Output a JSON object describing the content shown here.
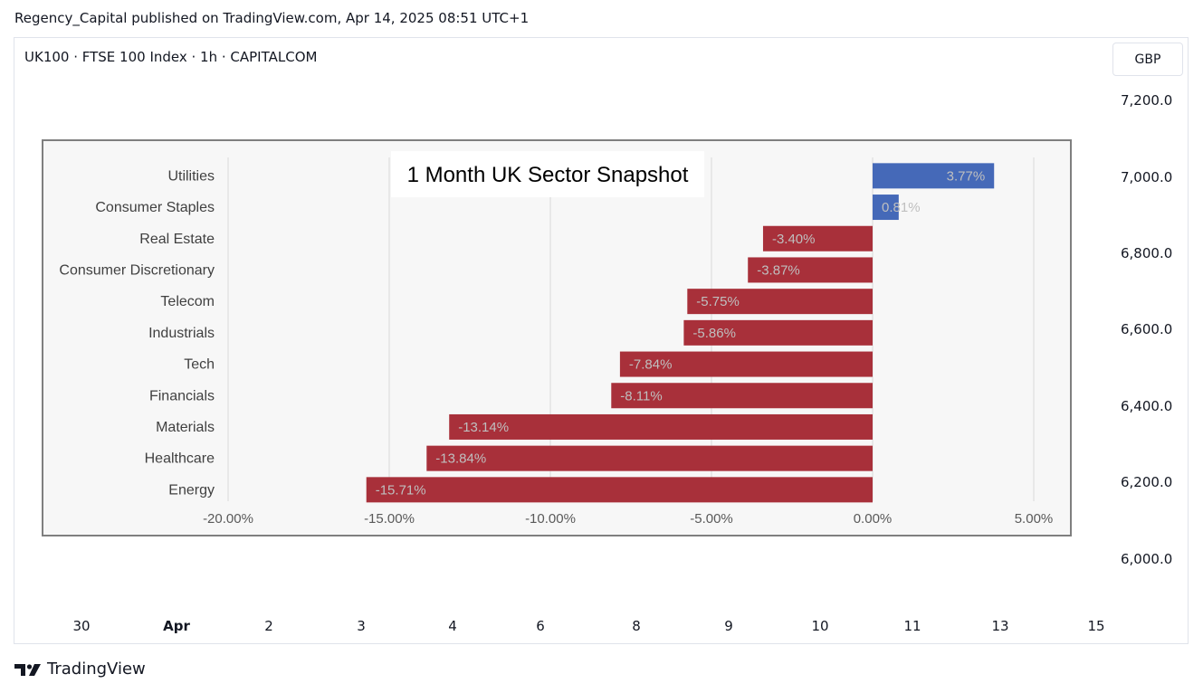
{
  "header": {
    "published": "Regency_Capital published on TradingView.com, Apr 14, 2025 08:51 UTC+1"
  },
  "symbol_line": "UK100 · FTSE 100 Index · 1h · CAPITALCOM",
  "currency_button": "GBP",
  "price_axis": [
    "7,200.0",
    "7,000.0",
    "6,800.0",
    "6,600.0",
    "6,400.0",
    "6,200.0",
    "6,000.0"
  ],
  "time_axis": [
    {
      "label": "30",
      "bold": false
    },
    {
      "label": "Apr",
      "bold": true
    },
    {
      "label": "2",
      "bold": false
    },
    {
      "label": "3",
      "bold": false
    },
    {
      "label": "4",
      "bold": false
    },
    {
      "label": "6",
      "bold": false
    },
    {
      "label": "8",
      "bold": false
    },
    {
      "label": "9",
      "bold": false
    },
    {
      "label": "10",
      "bold": false
    },
    {
      "label": "11",
      "bold": false
    },
    {
      "label": "13",
      "bold": false
    },
    {
      "label": "15",
      "bold": false
    }
  ],
  "footer": {
    "brand": "TradingView"
  },
  "colors": {
    "positive": "#4569b8",
    "negative": "#a8303a",
    "grid": "#d9d9d9",
    "plot_bg": "#f7f7f7"
  },
  "chart_data": {
    "type": "bar",
    "orientation": "horizontal",
    "title": "1 Month UK Sector Snapshot",
    "categories": [
      "Utilities",
      "Consumer Staples",
      "Real Estate",
      "Consumer Discretionary",
      "Telecom",
      "Industrials",
      "Tech",
      "Financials",
      "Materials",
      "Healthcare",
      "Energy"
    ],
    "values": [
      3.77,
      0.81,
      -3.4,
      -3.87,
      -5.75,
      -5.86,
      -7.84,
      -8.11,
      -13.14,
      -13.84,
      -15.71
    ],
    "value_labels": [
      "3.77%",
      "0.81%",
      "-3.40%",
      "-3.87%",
      "-5.75%",
      "-5.86%",
      "-7.84%",
      "-8.11%",
      "-13.14%",
      "-13.84%",
      "-15.71%"
    ],
    "xlim": [
      -20,
      5
    ],
    "x_ticks": [
      -20,
      -15,
      -10,
      -5,
      0,
      5
    ],
    "x_tick_labels": [
      "-20.00%",
      "-15.00%",
      "-10.00%",
      "-5.00%",
      "0.00%",
      "5.00%"
    ],
    "grid": true,
    "legend": "none"
  }
}
